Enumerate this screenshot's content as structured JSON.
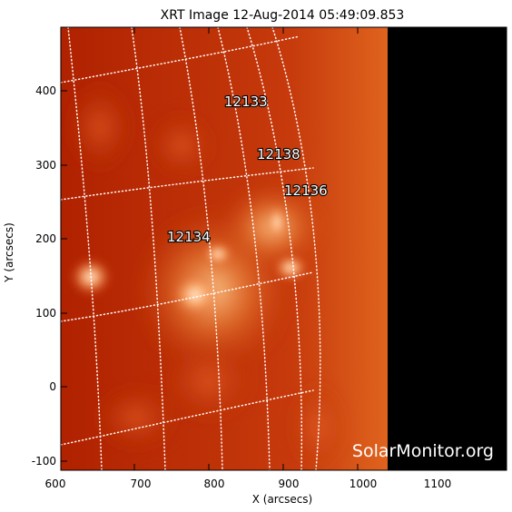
{
  "title": "XRT Image 12-Aug-2014 05:49:09.853",
  "x_axis": {
    "label": "X (arcsecs)",
    "ticks": [
      "600",
      "700",
      "800",
      "900",
      "1000",
      "1100"
    ]
  },
  "y_axis": {
    "label": "Y (arcsecs)",
    "ticks": [
      "400",
      "300",
      "200",
      "100",
      "0",
      "-100"
    ]
  },
  "active_regions": [
    {
      "id": "12133",
      "x": 848,
      "y": 385
    },
    {
      "id": "12138",
      "x": 890,
      "y": 315
    },
    {
      "id": "12136",
      "x": 925,
      "y": 265
    },
    {
      "id": "12134",
      "x": 765,
      "y": 200
    }
  ],
  "watermark": "SolarMonitor.org",
  "colors": {
    "frame": "#000000",
    "background": "#ffffff",
    "solar_base": "#b22300",
    "solar_bright": "#ffd9a8",
    "off_disk": "#000000",
    "grid": "#ffffff"
  }
}
